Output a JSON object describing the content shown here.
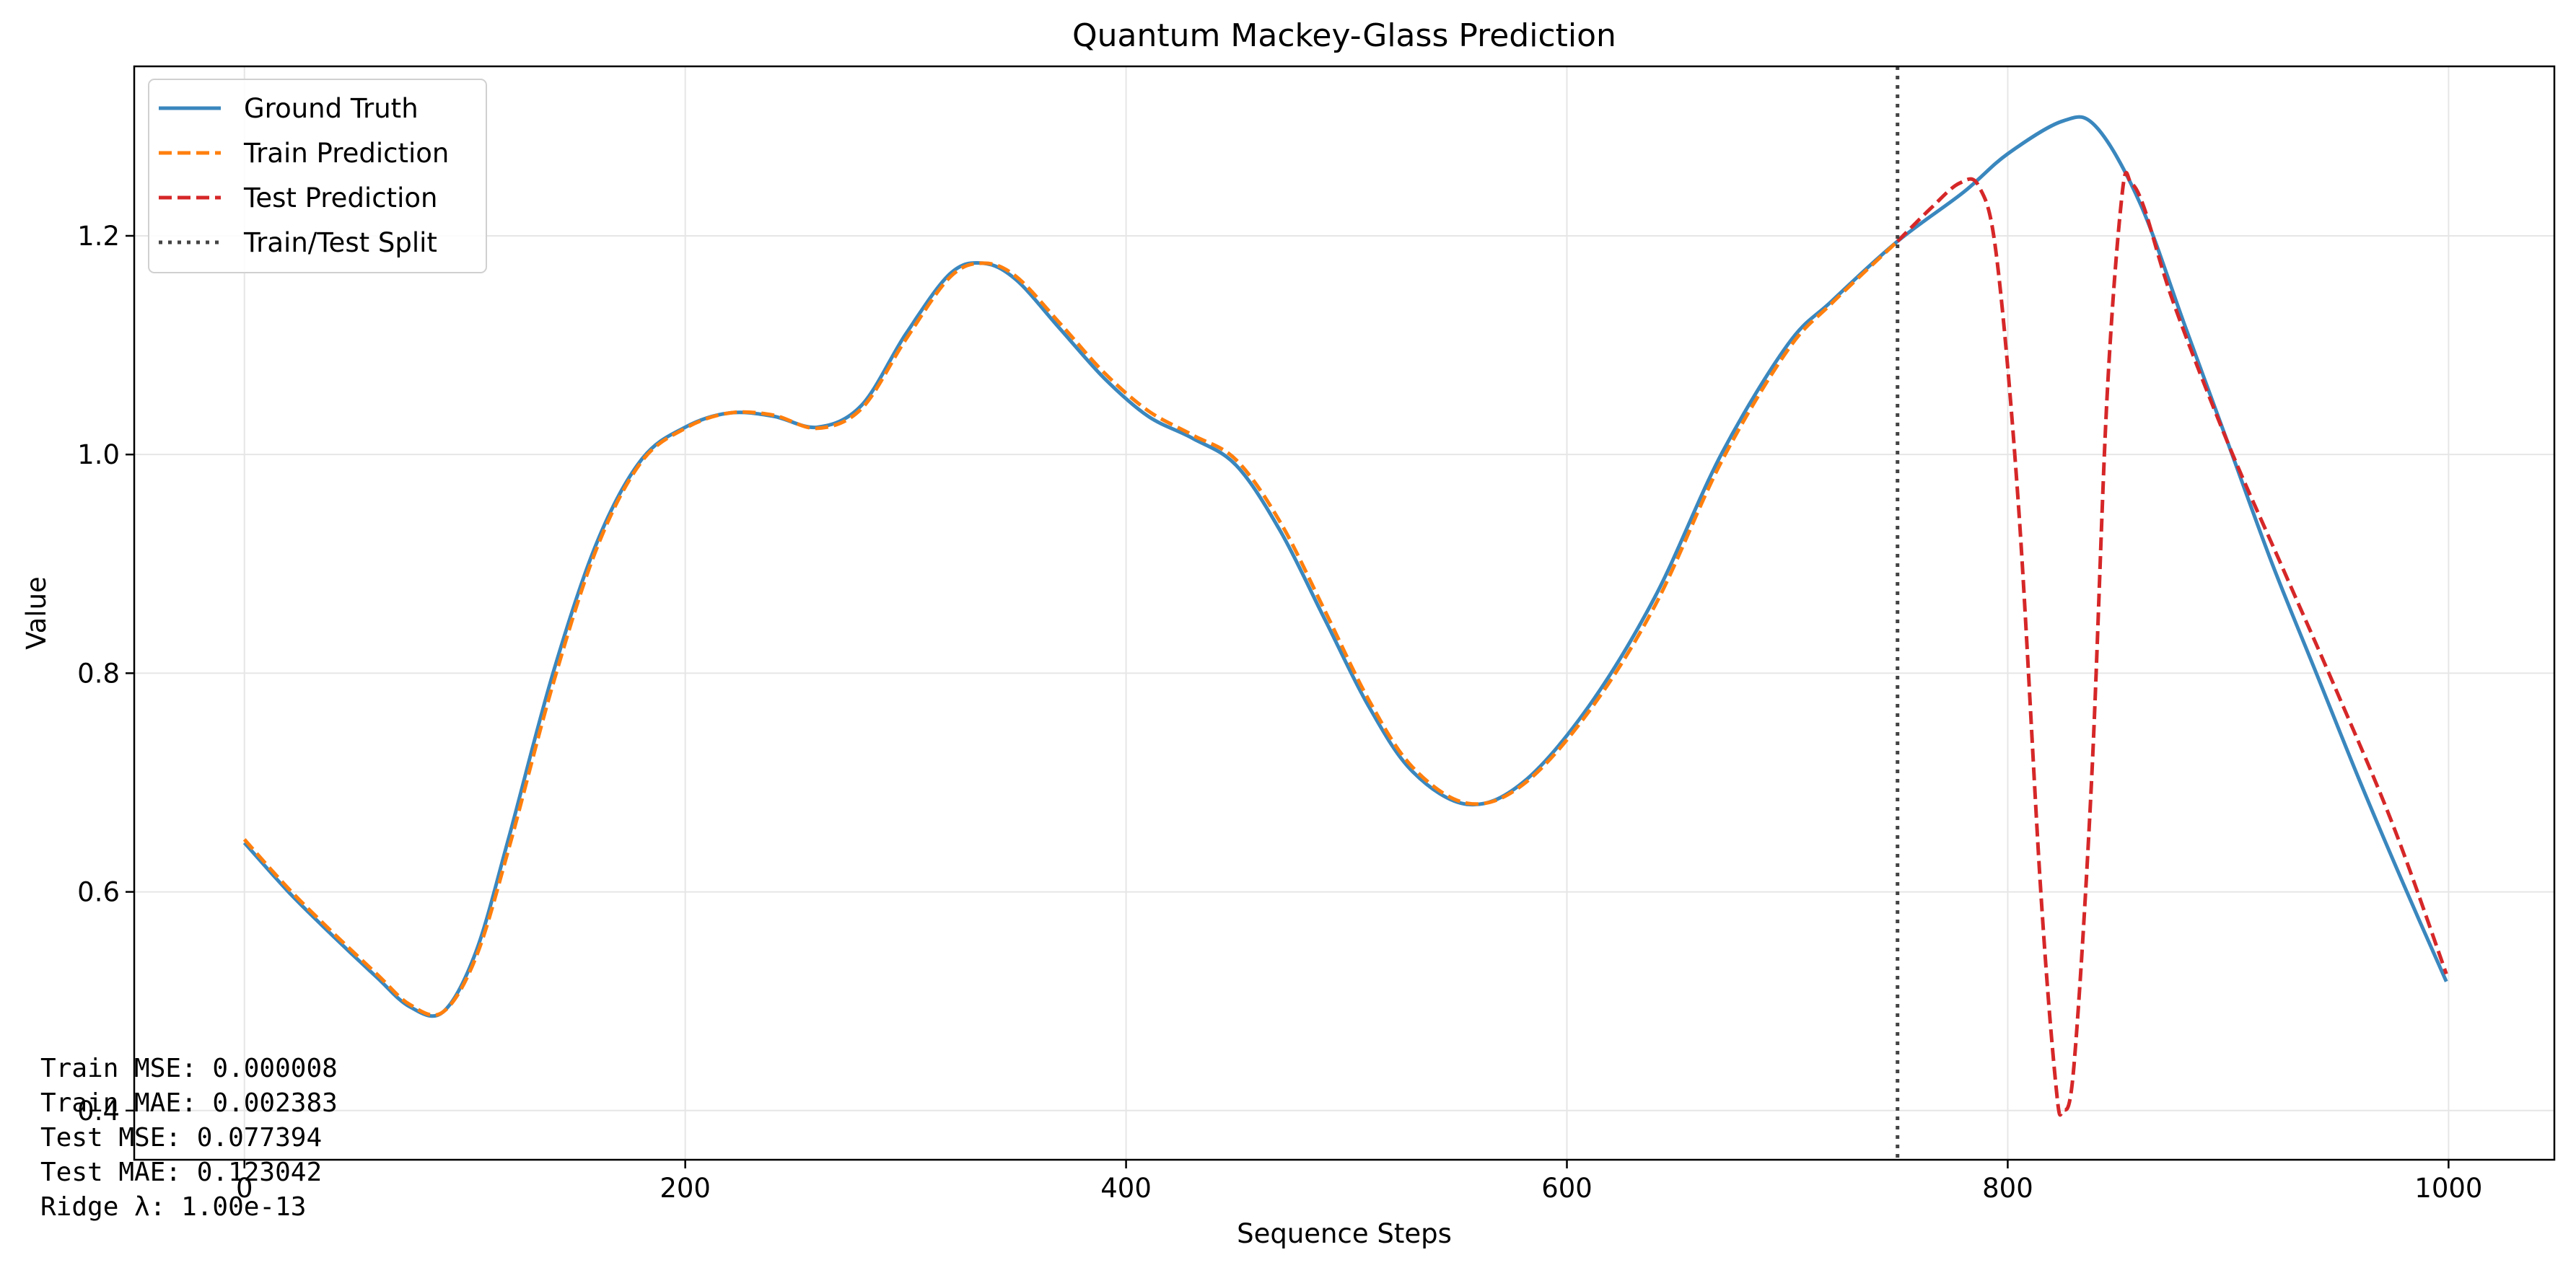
{
  "chart_data": {
    "type": "line",
    "title": "Quantum Mackey-Glass Prediction",
    "xlabel": "Sequence Steps",
    "ylabel": "Value",
    "xlim": [
      -50,
      1048
    ],
    "ylim": [
      0.355,
      1.355
    ],
    "xticks": [
      0,
      200,
      400,
      600,
      800,
      1000
    ],
    "yticks": [
      0.4,
      0.6,
      0.8,
      1.0,
      1.2
    ],
    "grid": true,
    "legend_position": "top-left",
    "split_x": 750,
    "series": [
      {
        "name": "Ground Truth",
        "color": "#3a87be",
        "style": "solid",
        "x": [
          0,
          20,
          40,
          60,
          75,
          90,
          105,
          120,
          140,
          160,
          180,
          200,
          220,
          240,
          260,
          280,
          300,
          320,
          335,
          350,
          370,
          390,
          410,
          430,
          450,
          470,
          490,
          510,
          530,
          555,
          580,
          610,
          640,
          670,
          700,
          720,
          750,
          780,
          800,
          825,
          840,
          860,
          880,
          900,
          920,
          940,
          960,
          980,
          999
        ],
        "y": [
          0.645,
          0.6,
          0.56,
          0.522,
          0.495,
          0.49,
          0.545,
          0.65,
          0.8,
          0.92,
          0.995,
          1.025,
          1.038,
          1.035,
          1.025,
          1.045,
          1.11,
          1.165,
          1.175,
          1.16,
          1.115,
          1.07,
          1.035,
          1.015,
          0.99,
          0.93,
          0.85,
          0.77,
          0.71,
          0.68,
          0.7,
          0.77,
          0.87,
          1.0,
          1.1,
          1.14,
          1.195,
          1.24,
          1.275,
          1.305,
          1.3,
          1.23,
          1.12,
          1.01,
          0.9,
          0.8,
          0.7,
          0.605,
          0.518
        ]
      },
      {
        "name": "Train Prediction",
        "color": "#ff7f0e",
        "style": "dashed",
        "x": [
          0,
          20,
          40,
          60,
          75,
          90,
          105,
          120,
          140,
          160,
          180,
          200,
          220,
          240,
          260,
          280,
          300,
          320,
          335,
          350,
          370,
          390,
          410,
          430,
          450,
          470,
          490,
          510,
          530,
          555,
          580,
          610,
          640,
          670,
          700,
          720,
          750
        ],
        "y": [
          0.648,
          0.603,
          0.563,
          0.525,
          0.497,
          0.49,
          0.54,
          0.64,
          0.79,
          0.915,
          0.993,
          1.024,
          1.038,
          1.036,
          1.024,
          1.042,
          1.105,
          1.162,
          1.175,
          1.163,
          1.12,
          1.075,
          1.04,
          1.018,
          0.995,
          0.938,
          0.858,
          0.776,
          0.714,
          0.681,
          0.698,
          0.765,
          0.862,
          0.993,
          1.095,
          1.138,
          1.195
        ]
      },
      {
        "name": "Test Prediction",
        "color": "#d62728",
        "style": "dashed",
        "x": [
          750,
          765,
          778,
          787,
          795,
          805,
          815,
          822,
          825,
          830,
          838,
          845,
          852,
          856,
          862,
          875,
          900,
          925,
          950,
          975,
          999
        ],
        "y": [
          1.195,
          1.225,
          1.248,
          1.245,
          1.18,
          0.95,
          0.6,
          0.42,
          0.4,
          0.44,
          0.7,
          1.05,
          1.24,
          1.248,
          1.225,
          1.14,
          1.01,
          0.895,
          0.78,
          0.66,
          0.525
        ]
      }
    ],
    "split_line": {
      "name": "Train/Test Split",
      "color": "#444444",
      "style": "dotted"
    },
    "annotations": [
      "Train MSE: 0.000008",
      "Train MAE: 0.002383",
      "Test MSE: 0.077394",
      "Test MAE: 0.123042",
      "Ridge λ: 1.00e-13"
    ]
  }
}
